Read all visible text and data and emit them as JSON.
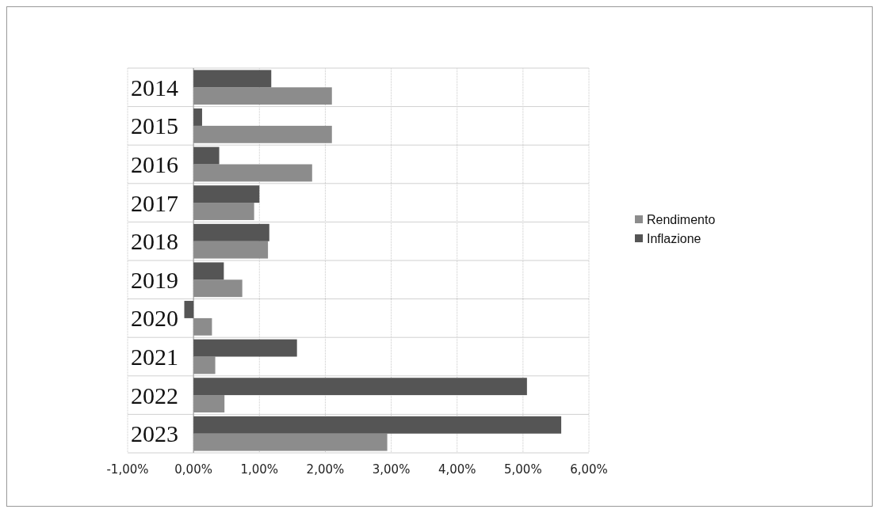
{
  "chart_data": {
    "type": "bar",
    "orientation": "horizontal",
    "categories": [
      "2014",
      "2015",
      "2016",
      "2017",
      "2018",
      "2019",
      "2020",
      "2021",
      "2022",
      "2023"
    ],
    "series": [
      {
        "name": "Rendimento",
        "color": "#8c8c8c",
        "values": [
          2.1,
          2.1,
          1.8,
          0.92,
          1.13,
          0.74,
          0.28,
          0.33,
          0.47,
          2.94
        ]
      },
      {
        "name": "Inflazione",
        "color": "#555555",
        "values": [
          1.18,
          0.13,
          0.39,
          1.0,
          1.15,
          0.46,
          -0.14,
          1.57,
          5.06,
          5.58
        ]
      }
    ],
    "xlim": [
      -1,
      6
    ],
    "xticks": [
      {
        "value": -1,
        "label": "-1,00%"
      },
      {
        "value": 0,
        "label": "0,00%"
      },
      {
        "value": 1,
        "label": "1,00%"
      },
      {
        "value": 2,
        "label": "2,00%"
      },
      {
        "value": 3,
        "label": "3,00%"
      },
      {
        "value": 4,
        "label": "4,00%"
      },
      {
        "value": 5,
        "label": "5,00%"
      },
      {
        "value": 6,
        "label": "6,00%"
      }
    ],
    "grid": true,
    "legend": "right"
  }
}
